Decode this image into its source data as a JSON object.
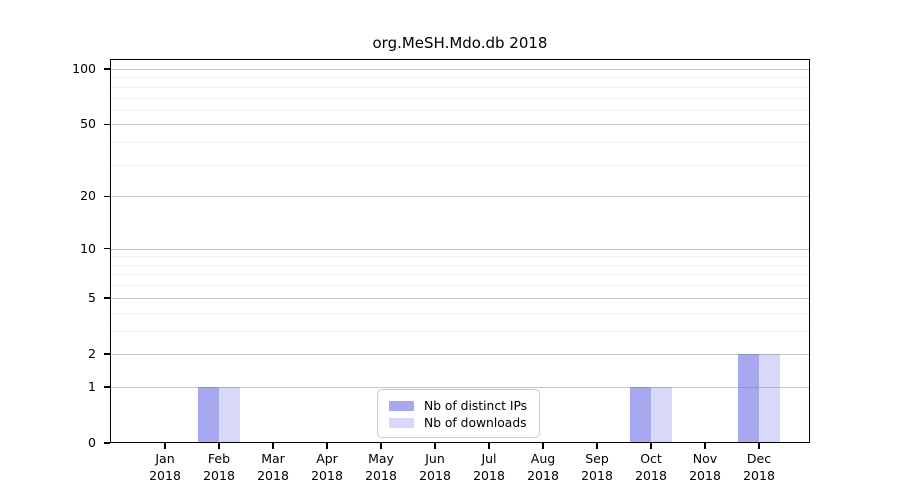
{
  "chart_data": {
    "type": "bar",
    "title": "org.MeSH.Mdo.db 2018",
    "categories": [
      "Jan",
      "Feb",
      "Mar",
      "Apr",
      "May",
      "Jun",
      "Jul",
      "Aug",
      "Sep",
      "Oct",
      "Nov",
      "Dec"
    ],
    "x_sublabel": "2018",
    "series": [
      {
        "name": "Nb of distinct IPs",
        "color": "#a8a8f0",
        "values": [
          0,
          1,
          0,
          0,
          0,
          0,
          0,
          0,
          0,
          1,
          0,
          2
        ]
      },
      {
        "name": "Nb of downloads",
        "color": "#d8d8f8",
        "values": [
          0,
          1,
          0,
          0,
          0,
          0,
          0,
          0,
          0,
          1,
          0,
          2
        ]
      }
    ],
    "yscale": "log1p",
    "ylim": [
      0,
      100
    ],
    "y_ticks": [
      0,
      1,
      2,
      5,
      10,
      20,
      50,
      100
    ],
    "y_minor_gridlines": [
      3,
      4,
      6,
      7,
      8,
      9,
      30,
      40,
      60,
      70,
      80,
      90
    ],
    "xlabel": "",
    "ylabel": "",
    "grid": true,
    "legend_position": "lower center"
  }
}
